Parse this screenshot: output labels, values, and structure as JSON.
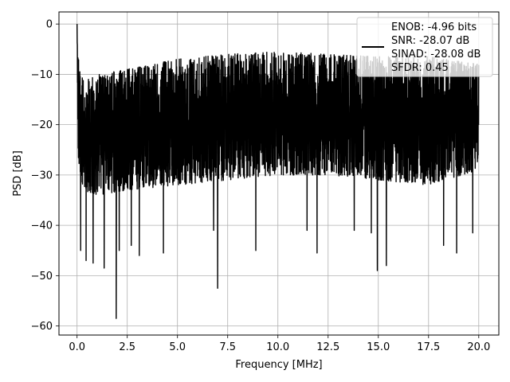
{
  "chart_data": {
    "type": "line",
    "xlabel": "Frequency [MHz]",
    "ylabel": "PSD [dB]",
    "xlim": [
      -0.9,
      21.0
    ],
    "ylim": [
      -61.8,
      2.4
    ],
    "xticks": [
      0.0,
      2.5,
      5.0,
      7.5,
      10.0,
      12.5,
      15.0,
      17.5,
      20.0
    ],
    "xtick_labels": [
      "0.0",
      "2.5",
      "5.0",
      "7.5",
      "10.0",
      "12.5",
      "15.0",
      "17.5",
      "20.0"
    ],
    "yticks": [
      0,
      -10,
      -20,
      -30,
      -40,
      -50,
      -60
    ],
    "ytick_labels": [
      "0",
      "−10",
      "−20",
      "−30",
      "−40",
      "−50",
      "−60"
    ],
    "grid": true,
    "legend": {
      "placement": "top-right",
      "lines": [
        "ENOB: -4.96 bits",
        "SNR: -28.07 dB",
        "SINAD: -28.08 dB",
        "SFDR: 0.45"
      ]
    },
    "series": [
      {
        "color": "#000000",
        "x_range": [
          0.0,
          20.0
        ],
        "envelope": {
          "x": [
            0.0,
            0.05,
            0.3,
            1.0,
            2.5,
            5.0,
            7.5,
            10.0,
            12.5,
            15.0,
            17.5,
            20.0
          ],
          "upper": [
            0.0,
            -6.0,
            -11.0,
            -10.0,
            -9.0,
            -7.0,
            -6.0,
            -5.5,
            -6.0,
            -6.5,
            -6.5,
            -8.0
          ],
          "lower": [
            -3.0,
            -27.0,
            -33.0,
            -34.0,
            -33.0,
            -32.0,
            -31.0,
            -30.0,
            -30.0,
            -31.0,
            -32.0,
            -29.0
          ]
        },
        "dips": [
          {
            "x": 0.18,
            "y": -45.0
          },
          {
            "x": 0.45,
            "y": -44.0
          },
          {
            "x": 0.45,
            "y": -47.0
          },
          {
            "x": 0.8,
            "y": -47.5
          },
          {
            "x": 1.35,
            "y": -48.5
          },
          {
            "x": 1.95,
            "y": -58.5
          },
          {
            "x": 2.1,
            "y": -45.0
          },
          {
            "x": 2.7,
            "y": -44.0
          },
          {
            "x": 3.1,
            "y": -46.0
          },
          {
            "x": 4.3,
            "y": -45.5
          },
          {
            "x": 6.8,
            "y": -41.0
          },
          {
            "x": 7.0,
            "y": -52.5
          },
          {
            "x": 8.9,
            "y": -45.0
          },
          {
            "x": 11.45,
            "y": -41.0
          },
          {
            "x": 11.95,
            "y": -45.5
          },
          {
            "x": 13.8,
            "y": -41.0
          },
          {
            "x": 14.65,
            "y": -41.5
          },
          {
            "x": 14.95,
            "y": -49.0
          },
          {
            "x": 15.4,
            "y": -48.0
          },
          {
            "x": 18.25,
            "y": -44.0
          },
          {
            "x": 18.9,
            "y": -45.5
          },
          {
            "x": 19.7,
            "y": -41.5
          }
        ]
      }
    ]
  }
}
